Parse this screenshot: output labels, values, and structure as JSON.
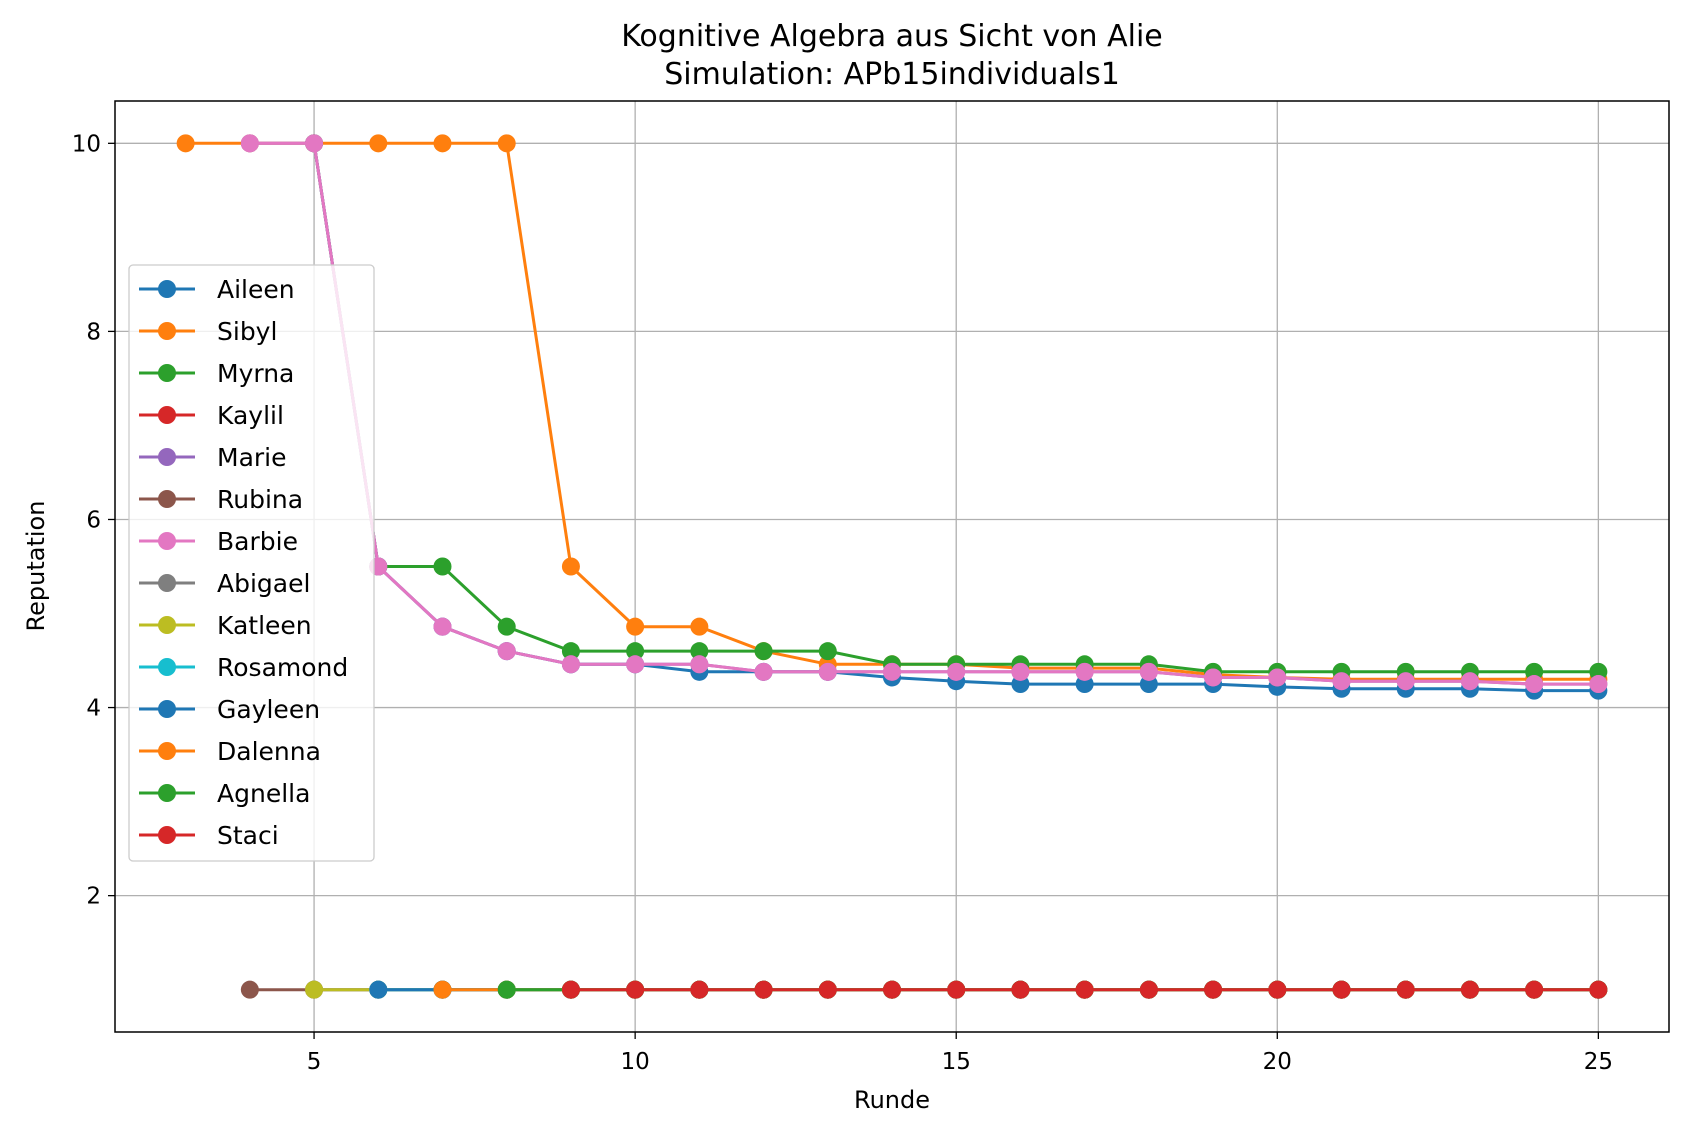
{
  "chart_data": {
    "type": "line",
    "title": "Kognitive Algebra aus Sicht von Alie",
    "subtitle": "Simulation: APb15individuals1",
    "xlabel": "Runde",
    "ylabel": "Reputation",
    "xlim": [
      1.9,
      26.1
    ],
    "ylim": [
      0.55,
      10.45
    ],
    "xticks": [
      5,
      10,
      15,
      20,
      25
    ],
    "yticks": [
      2,
      4,
      6,
      8,
      10
    ],
    "grid": true,
    "legend_position": "center-left",
    "marker": "circle",
    "series": [
      {
        "name": "Aileen",
        "color": "#1f77b4",
        "x": [
          5,
          6,
          7,
          8,
          9,
          10,
          11,
          12,
          13,
          14,
          15,
          16,
          17,
          18,
          19,
          20,
          21,
          22,
          23,
          24,
          25
        ],
        "y": [
          10,
          5.5,
          4.86,
          4.6,
          4.46,
          4.46,
          4.38,
          4.38,
          4.38,
          4.32,
          4.28,
          4.25,
          4.25,
          4.25,
          4.25,
          4.22,
          4.2,
          4.2,
          4.2,
          4.18,
          4.18
        ]
      },
      {
        "name": "Sibyl",
        "color": "#ff7f0e",
        "x": [
          3,
          4,
          5,
          6,
          7,
          8,
          9,
          10,
          11,
          12,
          13,
          14,
          15,
          16,
          17,
          18,
          19,
          20,
          21,
          22,
          23,
          24,
          25
        ],
        "y": [
          10,
          10,
          10,
          10,
          10,
          10,
          5.5,
          4.86,
          4.86,
          4.6,
          4.46,
          4.46,
          4.46,
          4.42,
          4.42,
          4.42,
          4.35,
          4.32,
          4.3,
          4.3,
          4.3,
          4.3,
          4.3
        ]
      },
      {
        "name": "Myrna",
        "color": "#2ca02c",
        "x": [
          5,
          6,
          7,
          8,
          9,
          10,
          11,
          12,
          13,
          14,
          15,
          16,
          17,
          18,
          19,
          20,
          21,
          22,
          23,
          24,
          25
        ],
        "y": [
          10,
          5.5,
          5.5,
          4.86,
          4.6,
          4.6,
          4.6,
          4.6,
          4.6,
          4.46,
          4.46,
          4.46,
          4.46,
          4.46,
          4.38,
          4.38,
          4.38,
          4.38,
          4.38,
          4.38,
          4.38
        ]
      },
      {
        "name": "Kaylil",
        "color": "#d62728",
        "x": [
          9,
          10,
          11,
          12,
          13,
          14,
          15,
          16,
          17,
          18,
          19,
          20,
          21,
          22,
          23,
          24,
          25
        ],
        "y": [
          1,
          1,
          1,
          1,
          1,
          1,
          1,
          1,
          1,
          1,
          1,
          1,
          1,
          1,
          1,
          1,
          1
        ]
      },
      {
        "name": "Marie",
        "color": "#9467bd",
        "x": [
          4,
          5,
          6,
          7,
          8,
          9,
          10,
          11,
          12,
          13,
          14,
          15,
          16,
          17,
          18,
          19,
          20,
          21,
          22,
          23,
          24,
          25
        ],
        "y": [
          10,
          10,
          5.5,
          4.86,
          4.6,
          4.46,
          4.46,
          4.46,
          4.38,
          4.38,
          4.38,
          4.38,
          4.38,
          4.38,
          4.38,
          4.32,
          4.32,
          4.28,
          4.28,
          4.28,
          4.25,
          4.25
        ]
      },
      {
        "name": "Rubina",
        "color": "#8c564b",
        "x": [
          4,
          5,
          6,
          7,
          8,
          9,
          10,
          11,
          12,
          13,
          14,
          15,
          16,
          17,
          18,
          19,
          20,
          21,
          22,
          23,
          24,
          25
        ],
        "y": [
          1,
          1,
          1,
          1,
          1,
          1,
          1,
          1,
          1,
          1,
          1,
          1,
          1,
          1,
          1,
          1,
          1,
          1,
          1,
          1,
          1,
          1
        ]
      },
      {
        "name": "Barbie",
        "color": "#e377c2",
        "x": [
          4,
          5,
          6,
          7,
          8,
          9,
          10,
          11,
          12,
          13,
          14,
          15,
          16,
          17,
          18,
          19,
          20,
          21,
          22,
          23,
          24,
          25
        ],
        "y": [
          10,
          10,
          5.5,
          4.86,
          4.6,
          4.46,
          4.46,
          4.46,
          4.38,
          4.38,
          4.38,
          4.38,
          4.38,
          4.38,
          4.38,
          4.32,
          4.32,
          4.28,
          4.28,
          4.28,
          4.25,
          4.25
        ]
      },
      {
        "name": "Abigael",
        "color": "#7f7f7f",
        "x": [
          5,
          6,
          7,
          8,
          9,
          10,
          11,
          12,
          13,
          14,
          15,
          16,
          17,
          18,
          19,
          20,
          21,
          22,
          23,
          24,
          25
        ],
        "y": [
          1,
          1,
          1,
          1,
          1,
          1,
          1,
          1,
          1,
          1,
          1,
          1,
          1,
          1,
          1,
          1,
          1,
          1,
          1,
          1,
          1
        ]
      },
      {
        "name": "Katleen",
        "color": "#bcbd22",
        "x": [
          5,
          6,
          7,
          8,
          9,
          10,
          11,
          12,
          13,
          14,
          15,
          16,
          17,
          18,
          19,
          20,
          21,
          22,
          23,
          24,
          25
        ],
        "y": [
          1,
          1,
          1,
          1,
          1,
          1,
          1,
          1,
          1,
          1,
          1,
          1,
          1,
          1,
          1,
          1,
          1,
          1,
          1,
          1,
          1
        ]
      },
      {
        "name": "Rosamond",
        "color": "#17becf",
        "x": [
          6,
          7,
          8,
          9,
          10,
          11,
          12,
          13,
          14,
          15,
          16,
          17,
          18,
          19,
          20,
          21,
          22,
          23,
          24,
          25
        ],
        "y": [
          1,
          1,
          1,
          1,
          1,
          1,
          1,
          1,
          1,
          1,
          1,
          1,
          1,
          1,
          1,
          1,
          1,
          1,
          1,
          1
        ]
      },
      {
        "name": "Gayleen",
        "color": "#1f77b4",
        "x": [
          6,
          7,
          8,
          9,
          10,
          11,
          12,
          13,
          14,
          15,
          16,
          17,
          18,
          19,
          20,
          21,
          22,
          23,
          24,
          25
        ],
        "y": [
          1,
          1,
          1,
          1,
          1,
          1,
          1,
          1,
          1,
          1,
          1,
          1,
          1,
          1,
          1,
          1,
          1,
          1,
          1,
          1
        ]
      },
      {
        "name": "Dalenna",
        "color": "#ff7f0e",
        "x": [
          7,
          8,
          9,
          10,
          11,
          12,
          13,
          14,
          15,
          16,
          17,
          18,
          19,
          20,
          21,
          22,
          23,
          24,
          25
        ],
        "y": [
          1,
          1,
          1,
          1,
          1,
          1,
          1,
          1,
          1,
          1,
          1,
          1,
          1,
          1,
          1,
          1,
          1,
          1,
          1
        ]
      },
      {
        "name": "Agnella",
        "color": "#2ca02c",
        "x": [
          8,
          9,
          10,
          11,
          12,
          13,
          14,
          15,
          16,
          17,
          18,
          19,
          20,
          21,
          22,
          23,
          24,
          25
        ],
        "y": [
          1,
          1,
          1,
          1,
          1,
          1,
          1,
          1,
          1,
          1,
          1,
          1,
          1,
          1,
          1,
          1,
          1,
          1
        ]
      },
      {
        "name": "Staci",
        "color": "#d62728",
        "x": [
          9,
          10,
          11,
          12,
          13,
          14,
          15,
          16,
          17,
          18,
          19,
          20,
          21,
          22,
          23,
          24,
          25
        ],
        "y": [
          1,
          1,
          1,
          1,
          1,
          1,
          1,
          1,
          1,
          1,
          1,
          1,
          1,
          1,
          1,
          1,
          1
        ]
      }
    ]
  }
}
